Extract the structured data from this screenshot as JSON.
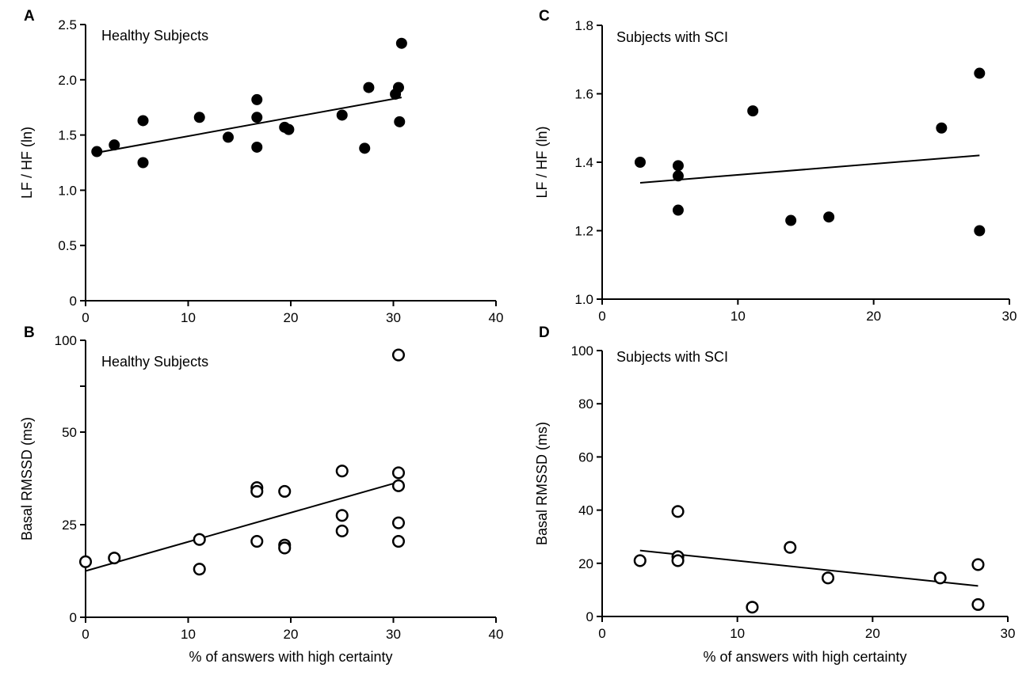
{
  "chart_data": [
    {
      "panel": "A",
      "type": "scatter",
      "title": "Healthy Subjects",
      "xlabel": "",
      "ylabel": "LF / HF (ln)",
      "xlim": [
        0,
        40
      ],
      "ylim": [
        0,
        2.5
      ],
      "xticks": [
        0,
        10,
        20,
        30,
        40
      ],
      "yticks": [
        0,
        0.5,
        1.0,
        1.5,
        2.0,
        2.5
      ],
      "ytick_labels": [
        "0",
        "0.5",
        "1.0",
        "1.5",
        "2.0",
        "2.5"
      ],
      "marker": "filled",
      "points": [
        {
          "x": 1.1,
          "y": 1.35
        },
        {
          "x": 2.8,
          "y": 1.41
        },
        {
          "x": 5.6,
          "y": 1.63
        },
        {
          "x": 5.6,
          "y": 1.25
        },
        {
          "x": 11.1,
          "y": 1.66
        },
        {
          "x": 13.9,
          "y": 1.48
        },
        {
          "x": 16.7,
          "y": 1.82
        },
        {
          "x": 16.7,
          "y": 1.66
        },
        {
          "x": 16.7,
          "y": 1.39
        },
        {
          "x": 19.4,
          "y": 1.57
        },
        {
          "x": 19.8,
          "y": 1.55
        },
        {
          "x": 25.0,
          "y": 1.68
        },
        {
          "x": 27.2,
          "y": 1.38
        },
        {
          "x": 27.6,
          "y": 1.93
        },
        {
          "x": 30.2,
          "y": 1.87
        },
        {
          "x": 30.5,
          "y": 1.93
        },
        {
          "x": 30.6,
          "y": 1.62
        },
        {
          "x": 30.8,
          "y": 2.33
        }
      ],
      "fit": {
        "x": [
          1.1,
          30.8
        ],
        "y": [
          1.34,
          1.84
        ]
      }
    },
    {
      "panel": "B",
      "type": "scatter",
      "title": "Healthy Subjects",
      "xlabel": "% of answers with high certainty",
      "ylabel": "Basal RMSSD (ms)",
      "xlim": [
        0,
        40
      ],
      "ylim": [
        0,
        100
      ],
      "xticks": [
        0,
        10,
        20,
        30,
        40
      ],
      "yticks": [
        0,
        25,
        50,
        100
      ],
      "ytick_labels": [
        "0",
        "25",
        "50",
        "100"
      ],
      "ytick_positions": [
        0,
        25,
        50,
        100
      ],
      "minor_ytick_positions": [
        75
      ],
      "y_scale_note": "nonuniform",
      "marker": "open",
      "points": [
        {
          "x": 0.0,
          "y": 15
        },
        {
          "x": 2.8,
          "y": 16
        },
        {
          "x": 11.1,
          "y": 21
        },
        {
          "x": 11.1,
          "y": 13
        },
        {
          "x": 16.7,
          "y": 35
        },
        {
          "x": 16.7,
          "y": 34
        },
        {
          "x": 16.7,
          "y": 20.5
        },
        {
          "x": 19.4,
          "y": 34
        },
        {
          "x": 19.4,
          "y": 19.5
        },
        {
          "x": 19.4,
          "y": 18.7
        },
        {
          "x": 25.0,
          "y": 39.5
        },
        {
          "x": 25.0,
          "y": 27.5
        },
        {
          "x": 25.0,
          "y": 23.3
        },
        {
          "x": 30.5,
          "y": 92
        },
        {
          "x": 30.5,
          "y": 39
        },
        {
          "x": 30.5,
          "y": 35.5
        },
        {
          "x": 30.5,
          "y": 25.5
        },
        {
          "x": 30.5,
          "y": 20.5
        }
      ],
      "fit": {
        "x": [
          0.0,
          30.5
        ],
        "y": [
          12.5,
          36.5
        ]
      }
    },
    {
      "panel": "C",
      "type": "scatter",
      "title": "Subjects with SCI",
      "xlabel": "",
      "ylabel": "LF / HF (ln)",
      "xlim": [
        0,
        30
      ],
      "ylim": [
        1.0,
        1.8
      ],
      "xticks": [
        0,
        10,
        20,
        30
      ],
      "yticks": [
        1.0,
        1.2,
        1.4,
        1.6,
        1.8
      ],
      "ytick_labels": [
        "1.0",
        "1.2",
        "1.4",
        "1.6",
        "1.8"
      ],
      "marker": "filled",
      "points": [
        {
          "x": 2.8,
          "y": 1.4
        },
        {
          "x": 5.6,
          "y": 1.39
        },
        {
          "x": 5.6,
          "y": 1.36
        },
        {
          "x": 5.6,
          "y": 1.26
        },
        {
          "x": 11.1,
          "y": 1.55
        },
        {
          "x": 13.9,
          "y": 1.23
        },
        {
          "x": 16.7,
          "y": 1.24
        },
        {
          "x": 25.0,
          "y": 1.5
        },
        {
          "x": 27.8,
          "y": 1.66
        },
        {
          "x": 27.8,
          "y": 1.2
        }
      ],
      "fit": {
        "x": [
          2.8,
          27.8
        ],
        "y": [
          1.34,
          1.42
        ]
      }
    },
    {
      "panel": "D",
      "type": "scatter",
      "title": "Subjects with SCI",
      "xlabel": "% of answers with high certainty",
      "ylabel": "Basal RMSSD (ms)",
      "xlim": [
        0,
        30
      ],
      "ylim": [
        0,
        100
      ],
      "xticks": [
        0,
        10,
        20,
        30
      ],
      "yticks": [
        0,
        20,
        40,
        60,
        80,
        100
      ],
      "ytick_labels": [
        "0",
        "20",
        "40",
        "60",
        "80",
        "100"
      ],
      "marker": "open",
      "points": [
        {
          "x": 2.8,
          "y": 21
        },
        {
          "x": 5.6,
          "y": 39.5
        },
        {
          "x": 5.6,
          "y": 22.5
        },
        {
          "x": 5.6,
          "y": 21
        },
        {
          "x": 11.1,
          "y": 3.5
        },
        {
          "x": 13.9,
          "y": 26
        },
        {
          "x": 16.7,
          "y": 14.5
        },
        {
          "x": 25.0,
          "y": 14.5
        },
        {
          "x": 27.8,
          "y": 19.5
        },
        {
          "x": 27.8,
          "y": 4.5
        }
      ],
      "fit": {
        "x": [
          2.8,
          27.8
        ],
        "y": [
          24.8,
          11.5
        ]
      }
    }
  ]
}
